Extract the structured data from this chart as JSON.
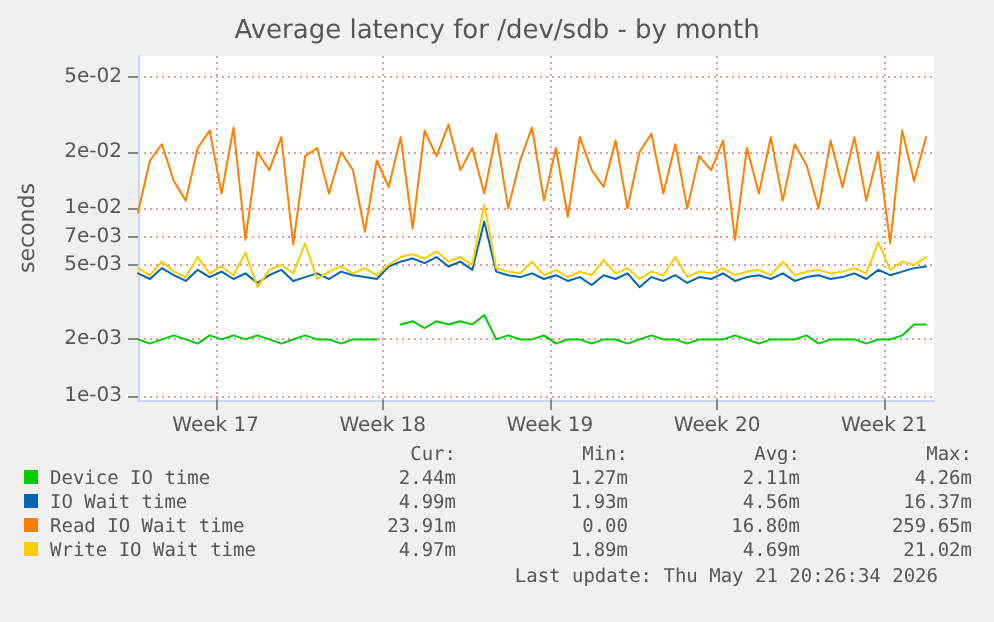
{
  "chart_data": {
    "type": "line",
    "title": "Average latency for /dev/sdb - by month",
    "ylabel": "seconds",
    "x": [
      "2026-04-18T12:00",
      "2026-04-19T00:00",
      "2026-04-19T12:00",
      "2026-04-20T00:00",
      "2026-04-20T12:00",
      "2026-04-21T00:00",
      "2026-04-21T12:00",
      "2026-04-22T00:00",
      "2026-04-22T12:00",
      "2026-04-23T00:00",
      "2026-04-23T12:00",
      "2026-04-24T00:00",
      "2026-04-24T12:00",
      "2026-04-25T00:00",
      "2026-04-25T12:00",
      "2026-04-26T00:00",
      "2026-04-26T12:00",
      "2026-04-27T00:00",
      "2026-04-27T12:00",
      "2026-04-28T00:00",
      "2026-04-28T12:00",
      "2026-04-29T00:00",
      "2026-04-29T12:00",
      "2026-04-30T00:00",
      "2026-04-30T12:00",
      "2026-05-01T00:00",
      "2026-05-01T12:00",
      "2026-05-02T00:00",
      "2026-05-02T12:00",
      "2026-05-03T00:00",
      "2026-05-03T12:00",
      "2026-05-04T00:00",
      "2026-05-04T12:00",
      "2026-05-05T00:00",
      "2026-05-05T12:00",
      "2026-05-06T00:00",
      "2026-05-06T12:00",
      "2026-05-07T00:00",
      "2026-05-07T12:00",
      "2026-05-08T00:00",
      "2026-05-08T12:00",
      "2026-05-09T00:00",
      "2026-05-09T12:00",
      "2026-05-10T00:00",
      "2026-05-10T12:00",
      "2026-05-11T00:00",
      "2026-05-11T12:00",
      "2026-05-12T00:00",
      "2026-05-12T12:00",
      "2026-05-13T00:00",
      "2026-05-13T12:00",
      "2026-05-14T00:00",
      "2026-05-14T12:00",
      "2026-05-15T00:00",
      "2026-05-15T12:00",
      "2026-05-16T00:00",
      "2026-05-16T12:00",
      "2026-05-17T00:00",
      "2026-05-17T12:00",
      "2026-05-18T00:00",
      "2026-05-18T12:00",
      "2026-05-19T00:00",
      "2026-05-19T12:00",
      "2026-05-20T00:00",
      "2026-05-20T12:00",
      "2026-05-21T00:00",
      "2026-05-21T12:00"
    ],
    "series": [
      {
        "name": "Read IO Wait time",
        "color": "#ff8000",
        "values": [
          0.0095,
          0.018,
          0.022,
          0.014,
          0.011,
          0.021,
          0.026,
          0.012,
          0.027,
          0.0068,
          0.02,
          0.016,
          0.024,
          0.0064,
          0.019,
          0.021,
          0.012,
          0.02,
          0.016,
          0.0075,
          0.018,
          0.013,
          0.024,
          0.0078,
          0.026,
          0.019,
          0.028,
          0.016,
          0.021,
          0.012,
          0.025,
          0.01,
          0.018,
          0.027,
          0.011,
          0.021,
          0.009,
          0.024,
          0.016,
          0.013,
          0.023,
          0.01,
          0.02,
          0.025,
          0.012,
          0.022,
          0.01,
          0.019,
          0.016,
          0.023,
          0.0068,
          0.021,
          0.012,
          0.024,
          0.011,
          0.022,
          0.017,
          0.01,
          0.023,
          0.013,
          0.024,
          0.011,
          0.02,
          0.0065,
          0.026,
          0.014,
          0.024
        ]
      },
      {
        "name": "IO Wait time",
        "color": "#0066b3",
        "values": [
          0.0045,
          0.0042,
          0.0048,
          0.0044,
          0.0041,
          0.0047,
          0.0043,
          0.0046,
          0.0042,
          0.0045,
          0.004,
          0.0044,
          0.0047,
          0.0041,
          0.0043,
          0.0045,
          0.0042,
          0.0046,
          0.0044,
          0.0043,
          0.0042,
          0.0049,
          0.0052,
          0.0054,
          0.0051,
          0.0055,
          0.0049,
          0.0052,
          0.0047,
          0.0085,
          0.0046,
          0.0044,
          0.0043,
          0.0045,
          0.0042,
          0.0044,
          0.0041,
          0.0043,
          0.0039,
          0.0044,
          0.0042,
          0.0045,
          0.0038,
          0.0043,
          0.0041,
          0.0044,
          0.004,
          0.0043,
          0.0042,
          0.0045,
          0.0041,
          0.0043,
          0.0044,
          0.0042,
          0.0045,
          0.0041,
          0.0043,
          0.0044,
          0.0042,
          0.0043,
          0.0045,
          0.0042,
          0.0047,
          0.0044,
          0.0046,
          0.0048,
          0.0049
        ]
      },
      {
        "name": "Write IO Wait time",
        "color": "#ffcc00",
        "values": [
          0.0048,
          0.0044,
          0.0052,
          0.0046,
          0.0043,
          0.0055,
          0.0045,
          0.0049,
          0.0044,
          0.0058,
          0.0038,
          0.0047,
          0.005,
          0.0045,
          0.0065,
          0.0042,
          0.0046,
          0.0049,
          0.0045,
          0.0048,
          0.0044,
          0.005,
          0.0055,
          0.0057,
          0.0054,
          0.0059,
          0.0052,
          0.0055,
          0.005,
          0.0105,
          0.0048,
          0.0046,
          0.0045,
          0.0052,
          0.0044,
          0.0047,
          0.0043,
          0.0046,
          0.0044,
          0.0053,
          0.0045,
          0.0048,
          0.0042,
          0.0046,
          0.0044,
          0.0055,
          0.0043,
          0.0046,
          0.0045,
          0.0048,
          0.0044,
          0.0046,
          0.0047,
          0.0044,
          0.0052,
          0.0044,
          0.0046,
          0.0047,
          0.0045,
          0.0046,
          0.0048,
          0.0045,
          0.0066,
          0.0047,
          0.0052,
          0.005,
          0.0055
        ]
      },
      {
        "name": "Device IO time",
        "color": "#00cc00",
        "values": [
          0.002,
          0.0019,
          0.002,
          0.0021,
          0.002,
          0.0019,
          0.0021,
          0.002,
          0.0021,
          0.002,
          0.0021,
          0.002,
          0.0019,
          0.002,
          0.0021,
          0.002,
          0.002,
          0.0019,
          0.002,
          0.002,
          0.002,
          null,
          0.0024,
          0.0025,
          0.0023,
          0.0025,
          0.0024,
          0.0025,
          0.0024,
          0.0027,
          0.002,
          0.0021,
          0.002,
          0.002,
          0.0021,
          0.0019,
          0.002,
          0.002,
          0.0019,
          0.002,
          0.002,
          0.0019,
          0.002,
          0.0021,
          0.002,
          0.002,
          0.0019,
          0.002,
          0.002,
          0.002,
          0.0021,
          0.002,
          0.0019,
          0.002,
          0.002,
          0.002,
          0.0021,
          0.0019,
          0.002,
          0.002,
          0.002,
          0.0019,
          0.002,
          0.002,
          0.0021,
          0.0024,
          0.0024
        ]
      }
    ],
    "xlim": [
      "2026-04-18T12:00",
      "2026-05-21T20:00"
    ],
    "xticks": [
      {
        "value": "2026-04-21T18:00",
        "label": "Week 17"
      },
      {
        "value": "2026-04-28T18:00",
        "label": "Week 18"
      },
      {
        "value": "2026-05-05T18:00",
        "label": "Week 19"
      },
      {
        "value": "2026-05-12T18:00",
        "label": "Week 20"
      },
      {
        "value": "2026-05-19T18:00",
        "label": "Week 21"
      }
    ],
    "ylim": [
      0.00095,
      0.065
    ],
    "yticks": [
      {
        "value": 0.001,
        "label": "1e-03"
      },
      {
        "value": 0.002,
        "label": "2e-03"
      },
      {
        "value": 0.005,
        "label": "5e-03"
      },
      {
        "value": 0.007,
        "label": "7e-03"
      },
      {
        "value": 0.01,
        "label": "1e-02"
      },
      {
        "value": 0.02,
        "label": "2e-02"
      },
      {
        "value": 0.05,
        "label": "5e-02"
      }
    ],
    "log": "y",
    "grid": true,
    "legend": "bottom",
    "marker": "none",
    "line_style": "solid",
    "annotations": [
      "Cur:",
      "Min:",
      "Avg:",
      "Max:",
      "2.44m",
      "1.27m",
      "2.11m",
      "4.26m",
      "4.99m",
      "1.93m",
      "4.56m",
      "16.37m",
      "23.91m",
      "0.00",
      "16.80m",
      "259.65m",
      "4.97m",
      "1.89m",
      "4.69m",
      "21.02m",
      "Last update: Thu May 21 20:26:34 2026"
    ]
  }
}
